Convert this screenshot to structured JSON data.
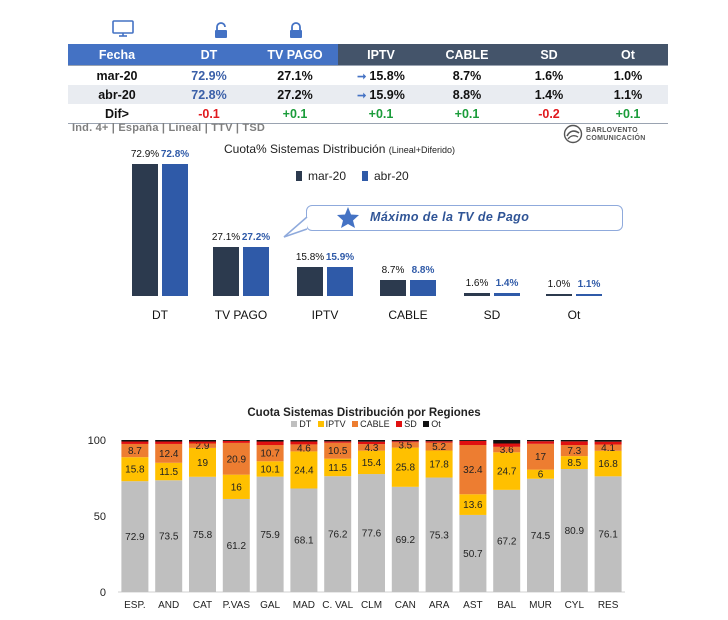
{
  "summary_table": {
    "headers": [
      "Fecha",
      "DT",
      "TV PAGO",
      "IPTV",
      "CABLE",
      "SD",
      "Ot"
    ],
    "rows": [
      {
        "label": "mar-20",
        "dt": "72.9%",
        "tvpago": "27.1%",
        "iptv": "15.8%",
        "cable": "8.7%",
        "sd": "1.6%",
        "ot": "1.0%"
      },
      {
        "label": "abr-20",
        "dt": "72.8%",
        "tvpago": "27.2%",
        "iptv": "15.9%",
        "cable": "8.8%",
        "sd": "1.4%",
        "ot": "1.1%"
      },
      {
        "label": "Dif>",
        "dt": "-0.1",
        "tvpago": "+0.1",
        "iptv": "+0.1",
        "cable": "+0.1",
        "sd": "-0.2",
        "ot": "+0.1"
      }
    ]
  },
  "footnote": "Ind. 4+ | España | Lineal | TTV | TSD",
  "logo": {
    "line1": "BARLOVENTO",
    "line2": "COMUNICACIÓN"
  },
  "callout": "Máximo  de la TV de Pago",
  "colors": {
    "mar": "#2c3a4e",
    "abr": "#2f5aa8",
    "table_blue": "#4472c4",
    "table_dark": "#44546a",
    "DT": "#bfbfbf",
    "IPTV": "#ffc000",
    "CABLE": "#ed7d31",
    "SD": "#e01010",
    "Ot": "#111111"
  },
  "chart_data": [
    {
      "type": "bar",
      "title": "Cuota% Sistemas Distribución",
      "subtitle": "(Lineal+Diferido)",
      "categories": [
        "DT",
        "TV PAGO",
        "IPTV",
        "CABLE",
        "SD",
        "Ot"
      ],
      "series": [
        {
          "name": "mar-20",
          "values": [
            72.9,
            27.1,
            15.8,
            8.7,
            1.6,
            1.0
          ],
          "labels": [
            "72.9%",
            "27.1%",
            "15.8%",
            "8.7%",
            "1.6%",
            "1.0%"
          ]
        },
        {
          "name": "abr-20",
          "values": [
            72.8,
            27.2,
            15.9,
            8.8,
            1.4,
            1.1
          ],
          "labels": [
            "72.8%",
            "27.2%",
            "15.9%",
            "8.8%",
            "1.4%",
            "1.1%"
          ]
        }
      ],
      "ylim": [
        0,
        75
      ]
    },
    {
      "type": "stacked_bar",
      "title": "Cuota Sistemas Distribución por  Regiones",
      "categories": [
        "ESP.",
        "AND",
        "CAT",
        "P.VAS",
        "GAL",
        "MAD",
        "C. VAL",
        "CLM",
        "CAN",
        "ARA",
        "AST",
        "BAL",
        "MUR",
        "CYL",
        "RES"
      ],
      "series": [
        {
          "name": "DT",
          "values": [
            72.9,
            73.5,
            75.8,
            61.2,
            75.9,
            68.1,
            76.2,
            77.6,
            69.2,
            75.3,
            50.7,
            67.2,
            74.5,
            80.9,
            76.1
          ]
        },
        {
          "name": "IPTV",
          "values": [
            15.8,
            11.5,
            19,
            16,
            10.1,
            24.4,
            11.5,
            15.4,
            25.8,
            17.8,
            13.6,
            24.7,
            6,
            8.5,
            16.8
          ]
        },
        {
          "name": "CABLE",
          "values": [
            8.7,
            12.4,
            2.9,
            20.9,
            10.7,
            4.6,
            10.5,
            4.3,
            3.5,
            5.2,
            32.4,
            3.6,
            17,
            7.3,
            4.1
          ]
        },
        {
          "name": "SD",
          "values": [
            1.6,
            1.6,
            1.3,
            1.3,
            2.3,
            1.9,
            0.9,
            1.6,
            0.7,
            0.9,
            2.7,
            2.2,
            1.7,
            2.4,
            1.9
          ]
        },
        {
          "name": "Ot",
          "values": [
            1.0,
            1.0,
            1.0,
            0.6,
            1.0,
            1.0,
            0.9,
            1.1,
            0.8,
            0.8,
            0.6,
            2.3,
            0.8,
            0.9,
            1.1
          ]
        }
      ],
      "value_labels": {
        "DT": [
          "72.9",
          "73.5",
          "75.8",
          "61.2",
          "75.9",
          "68.1",
          "76.2",
          "77.6",
          "69.2",
          "75.3",
          "50.7",
          "67.2",
          "74.5",
          "80.9",
          "76.1"
        ],
        "IPTV": [
          "15.8",
          "11.5",
          "19",
          "16",
          "10.1",
          "24.4",
          "11.5",
          "15.4",
          "25.8",
          "17.8",
          "13.6",
          "24.7",
          "6",
          "8.5",
          "16.8"
        ],
        "CABLE": [
          "8.7",
          "12.4",
          "2.9",
          "20.9",
          "10.7",
          "4.6",
          "10.5",
          "4.3",
          "3.5",
          "5.2",
          "32.4",
          "3.6",
          "17",
          "7.3",
          "4.1"
        ]
      },
      "y_ticks": [
        "0",
        "50",
        "100"
      ],
      "ylim": [
        0,
        100
      ],
      "legend": [
        "DT",
        "IPTV",
        "CABLE",
        "SD",
        "Ot"
      ]
    }
  ]
}
